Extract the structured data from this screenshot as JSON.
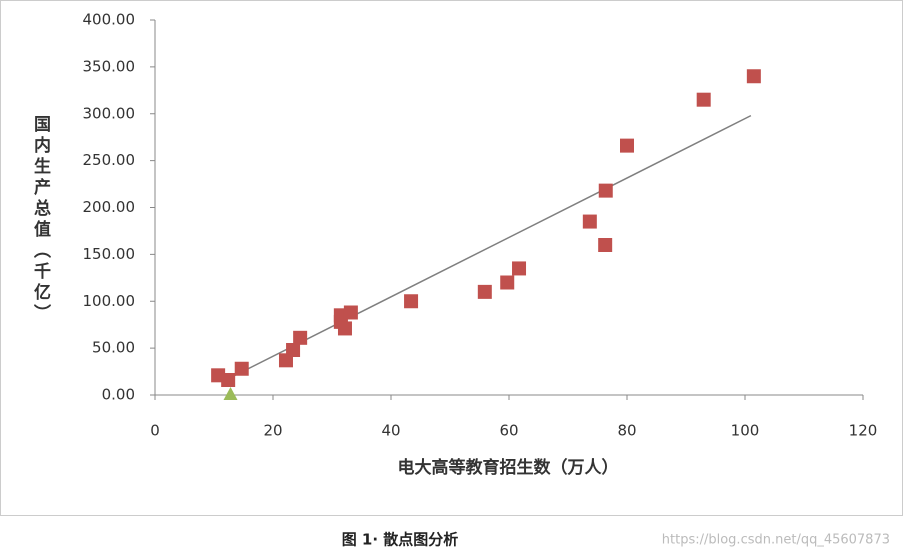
{
  "chart_data": {
    "type": "scatter",
    "y_label": "国内生产总值（千亿）",
    "x_label": "电大高等教育招生数（万人）",
    "caption": "图 1· 散点图分析",
    "watermark": "https://blog.csdn.net/qq_45607873",
    "xlim": [
      0,
      120
    ],
    "xticks": [
      0,
      20,
      40,
      60,
      80,
      100,
      120
    ],
    "ylim": [
      0,
      400
    ],
    "yticks": [
      {
        "value": 0,
        "label": "0.00"
      },
      {
        "value": 50,
        "label": "50.00"
      },
      {
        "value": 100,
        "label": "100.00"
      },
      {
        "value": 150,
        "label": "150.00"
      },
      {
        "value": 200,
        "label": "200.00"
      },
      {
        "value": 250,
        "label": "250.00"
      },
      {
        "value": 300,
        "label": "300.00"
      },
      {
        "value": 350,
        "label": "350.00"
      },
      {
        "value": 400,
        "label": "400.00"
      }
    ],
    "series": [
      {
        "color": "#c0504d",
        "marker": "square",
        "x": [
          10.7,
          12.4,
          14.7,
          22.2,
          23.4,
          24.6,
          31.5,
          31.5,
          32.2,
          33.2,
          43.4,
          55.9,
          59.7,
          61.7,
          73.7,
          76.3,
          76.4,
          80,
          93,
          101.5
        ],
        "values": [
          21,
          16,
          28,
          37,
          48,
          61,
          78,
          85,
          71,
          88,
          100,
          110,
          120,
          135,
          185,
          160,
          218,
          266,
          315,
          340
        ]
      },
      {
        "color": "#9bbb59",
        "marker": "triangle",
        "x": [
          12.8
        ],
        "values": [
          0
        ]
      }
    ],
    "trendline": {
      "color": "#7f7f7f",
      "x": [
        12,
        101
      ],
      "values": [
        16,
        298
      ]
    }
  }
}
